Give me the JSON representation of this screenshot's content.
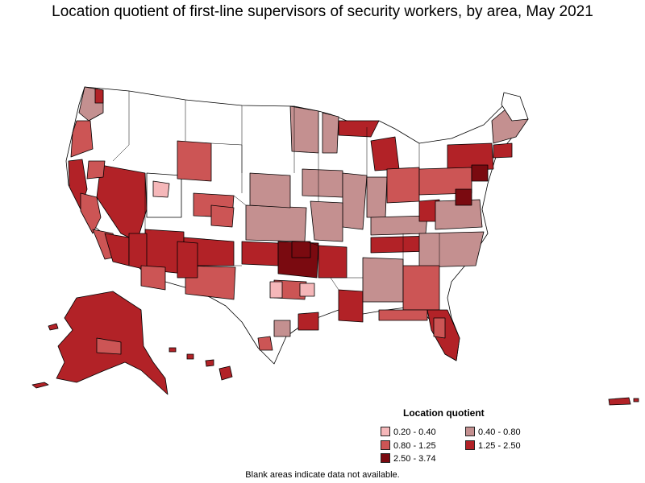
{
  "title": "Location quotient of first-line supervisors of security workers, by area, May 2021",
  "legend": {
    "title": "Location quotient",
    "items": [
      {
        "label": "0.20 - 0.40",
        "color": "#f5b7b9"
      },
      {
        "label": "0.40 - 0.80",
        "color": "#c49090"
      },
      {
        "label": "0.80 - 1.25",
        "color": "#cc5555"
      },
      {
        "label": "1.25 - 2.50",
        "color": "#b22227"
      },
      {
        "label": "2.50 - 3.74",
        "color": "#7a0a10"
      }
    ]
  },
  "footnote": "Blank areas indicate data not available.",
  "colors": {
    "no_data": "#ffffff",
    "border": "#000000"
  }
}
